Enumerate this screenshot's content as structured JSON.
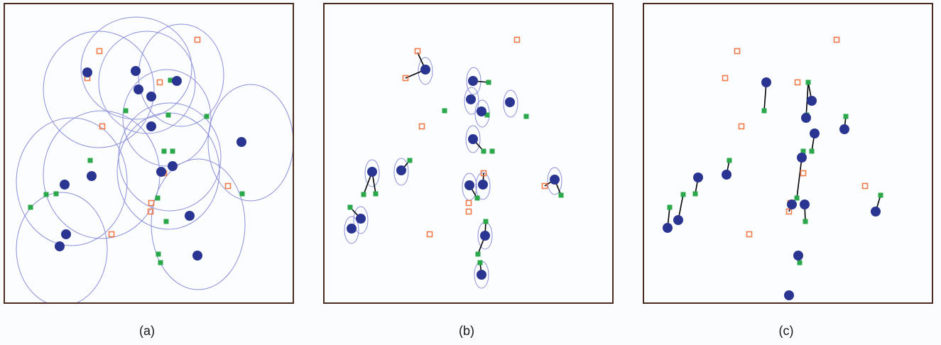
{
  "colors": {
    "frame": "#4a2c22",
    "ellipse": "#8b8fd9",
    "blue_dot": "#2a3592",
    "green_square": "#2aa84a",
    "orange_square": "#f07a4a",
    "link": "#000000"
  },
  "panels": [
    {
      "caption": "(a)",
      "ellipses": [
        [
          132,
          120,
          78,
          82
        ],
        [
          185,
          90,
          78,
          72
        ],
        [
          200,
          110,
          68,
          72
        ],
        [
          248,
          100,
          60,
          72
        ],
        [
          228,
          160,
          62,
          68
        ],
        [
          346,
          195,
          60,
          82
        ],
        [
          232,
          215,
          72,
          76
        ],
        [
          230,
          235,
          72,
          82
        ],
        [
          94,
          250,
          78,
          90
        ],
        [
          136,
          240,
          82,
          90
        ],
        [
          272,
          310,
          66,
          92
        ],
        [
          80,
          345,
          64,
          80
        ]
      ],
      "dots": [
        [
          116,
          96
        ],
        [
          184,
          94
        ],
        [
          188,
          120
        ],
        [
          206,
          130
        ],
        [
          242,
          108
        ],
        [
          206,
          172
        ],
        [
          333,
          194
        ],
        [
          220,
          236
        ],
        [
          236,
          228
        ],
        [
          122,
          242
        ],
        [
          84,
          254
        ],
        [
          260,
          298
        ],
        [
          86,
          324
        ],
        [
          77,
          341
        ],
        [
          271,
          354
        ]
      ],
      "green": [
        [
          233,
          107
        ],
        [
          170,
          150
        ],
        [
          230,
          156
        ],
        [
          284,
          158
        ],
        [
          120,
          220
        ],
        [
          224,
          207
        ],
        [
          236,
          207
        ],
        [
          215,
          273
        ],
        [
          58,
          268
        ],
        [
          72,
          267
        ],
        [
          334,
          267
        ],
        [
          36,
          286
        ],
        [
          227,
          306
        ],
        [
          216,
          352
        ],
        [
          219,
          364
        ]
      ],
      "orange": [
        [
          271,
          50
        ],
        [
          133,
          66
        ],
        [
          116,
          104
        ],
        [
          218,
          110
        ],
        [
          137,
          172
        ],
        [
          224,
          238
        ],
        [
          314,
          256
        ],
        [
          206,
          280
        ],
        [
          205,
          292
        ],
        [
          150,
          324
        ]
      ],
      "links": []
    },
    {
      "caption": "(b)",
      "ellipses": [
        [
          142,
          94,
          10,
          19
        ],
        [
          210,
          108,
          10,
          19
        ],
        [
          207,
          136,
          10,
          19
        ],
        [
          222,
          154,
          10,
          19
        ],
        [
          209,
          190,
          10,
          19
        ],
        [
          262,
          140,
          10,
          19
        ],
        [
          67,
          238,
          10,
          19
        ],
        [
          108,
          236,
          10,
          19
        ],
        [
          51,
          304,
          10,
          19
        ],
        [
          38,
          318,
          10,
          19
        ],
        [
          204,
          257,
          10,
          19
        ],
        [
          223,
          256,
          10,
          19
        ],
        [
          226,
          326,
          10,
          19
        ],
        [
          221,
          381,
          10,
          19
        ],
        [
          324,
          249,
          10,
          19
        ]
      ],
      "dots": [
        [
          142,
          92
        ],
        [
          209,
          108
        ],
        [
          206,
          134
        ],
        [
          221,
          151
        ],
        [
          209,
          190
        ],
        [
          261,
          138
        ],
        [
          67,
          236
        ],
        [
          108,
          234
        ],
        [
          51,
          302
        ],
        [
          38,
          316
        ],
        [
          204,
          255
        ],
        [
          223,
          254
        ],
        [
          226,
          326
        ],
        [
          221,
          381
        ],
        [
          324,
          247
        ]
      ],
      "green": [
        [
          231,
          110
        ],
        [
          229,
          156
        ],
        [
          169,
          150
        ],
        [
          284,
          158
        ],
        [
          120,
          220
        ],
        [
          224,
          207
        ],
        [
          236,
          207
        ],
        [
          215,
          273
        ],
        [
          55,
          268
        ],
        [
          72,
          267
        ],
        [
          333,
          269
        ],
        [
          36,
          286
        ],
        [
          227,
          306
        ],
        [
          216,
          352
        ],
        [
          219,
          364
        ]
      ],
      "orange": [
        [
          271,
          50
        ],
        [
          131,
          66
        ],
        [
          114,
          104
        ],
        [
          137,
          172
        ],
        [
          224,
          238
        ],
        [
          310,
          256
        ],
        [
          203,
          280
        ],
        [
          203,
          292
        ],
        [
          148,
          324
        ]
      ],
      "links": [
        [
          142,
          92,
          131,
          68
        ],
        [
          142,
          92,
          114,
          104
        ],
        [
          209,
          108,
          231,
          110
        ],
        [
          221,
          151,
          229,
          156
        ],
        [
          209,
          190,
          224,
          207
        ],
        [
          67,
          236,
          55,
          268
        ],
        [
          67,
          236,
          72,
          267
        ],
        [
          108,
          234,
          120,
          220
        ],
        [
          51,
          302,
          36,
          286
        ],
        [
          204,
          255,
          215,
          273
        ],
        [
          223,
          254,
          224,
          238
        ],
        [
          226,
          326,
          216,
          352
        ],
        [
          226,
          326,
          227,
          306
        ],
        [
          324,
          247,
          310,
          256
        ],
        [
          324,
          247,
          333,
          269
        ],
        [
          221,
          381,
          219,
          364
        ]
      ]
    },
    {
      "caption": "(c)",
      "ellipses": [],
      "dots": [
        [
          172,
          110
        ],
        [
          236,
          136
        ],
        [
          228,
          160
        ],
        [
          240,
          182
        ],
        [
          282,
          176
        ],
        [
          222,
          216
        ],
        [
          116,
          240
        ],
        [
          76,
          244
        ],
        [
          48,
          304
        ],
        [
          33,
          315
        ],
        [
          226,
          282
        ],
        [
          208,
          282
        ],
        [
          326,
          292
        ],
        [
          217,
          354
        ],
        [
          204,
          410
        ]
      ],
      "green": [
        [
          231,
          110
        ],
        [
          169,
          150
        ],
        [
          229,
          156
        ],
        [
          284,
          158
        ],
        [
          236,
          207
        ],
        [
          120,
          220
        ],
        [
          224,
          207
        ],
        [
          55,
          268
        ],
        [
          72,
          267
        ],
        [
          333,
          269
        ],
        [
          36,
          286
        ],
        [
          215,
          273
        ],
        [
          227,
          306
        ],
        [
          216,
          352
        ],
        [
          219,
          364
        ]
      ],
      "orange": [
        [
          271,
          50
        ],
        [
          131,
          66
        ],
        [
          114,
          104
        ],
        [
          216,
          110
        ],
        [
          137,
          172
        ],
        [
          224,
          238
        ],
        [
          311,
          256
        ],
        [
          206,
          280
        ],
        [
          204,
          292
        ],
        [
          148,
          324
        ]
      ],
      "links": [
        [
          172,
          110,
          169,
          150
        ],
        [
          236,
          136,
          231,
          110
        ],
        [
          228,
          160,
          231,
          110
        ],
        [
          240,
          182,
          236,
          207
        ],
        [
          282,
          176,
          284,
          158
        ],
        [
          222,
          216,
          224,
          207
        ],
        [
          222,
          216,
          215,
          273
        ],
        [
          116,
          240,
          120,
          220
        ],
        [
          76,
          244,
          72,
          267
        ],
        [
          48,
          304,
          55,
          268
        ],
        [
          33,
          315,
          36,
          286
        ],
        [
          226,
          282,
          227,
          306
        ],
        [
          208,
          282,
          204,
          292
        ],
        [
          326,
          292,
          333,
          269
        ],
        [
          217,
          354,
          219,
          364
        ],
        [
          217,
          354,
          216,
          352
        ]
      ]
    }
  ]
}
